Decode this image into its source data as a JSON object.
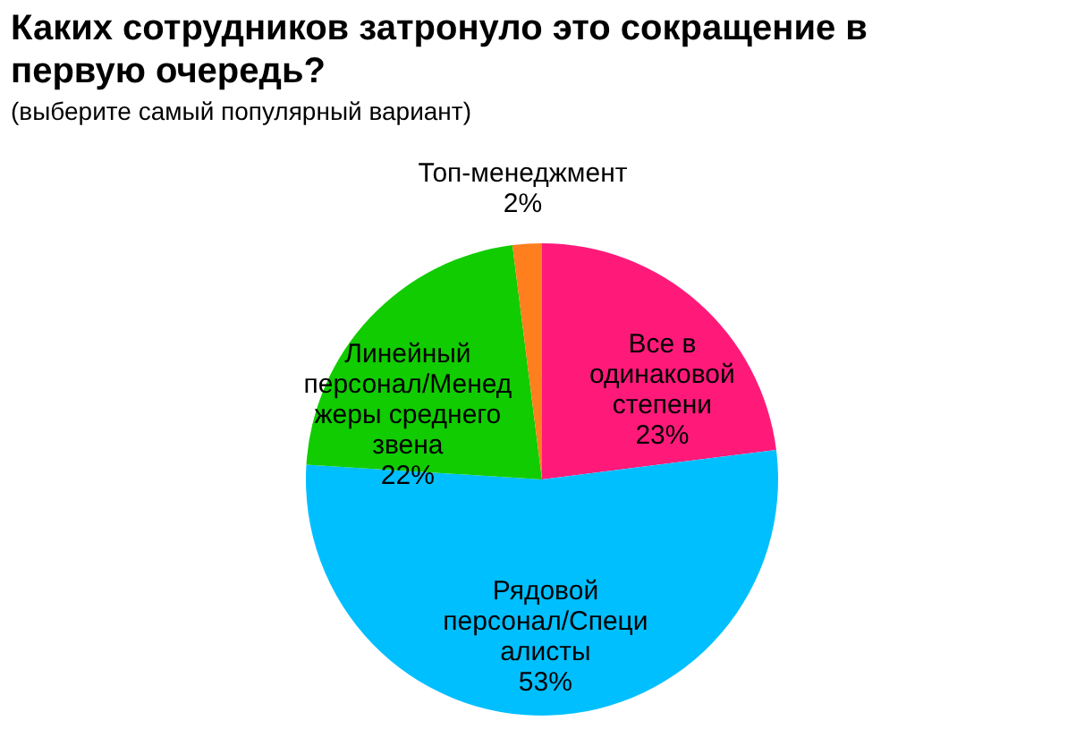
{
  "chart_data": {
    "type": "pie",
    "title": "Каких сотрудников затронуло это сокращение в первую очередь?",
    "subtitle": "(выберите самый популярный вариант)",
    "categories": [
      "Все в одинаковой степени",
      "Рядовой персонал/Специалисты",
      "Линейный персонал/Менеджеры среднего звена",
      "Топ-менеджмент"
    ],
    "values": [
      23,
      53,
      22,
      2
    ],
    "value_labels": [
      "23%",
      "53%",
      "22%",
      "2%"
    ],
    "colors": [
      "#ff1a7a",
      "#00bfff",
      "#11cc00",
      "#ff7f1e"
    ]
  }
}
